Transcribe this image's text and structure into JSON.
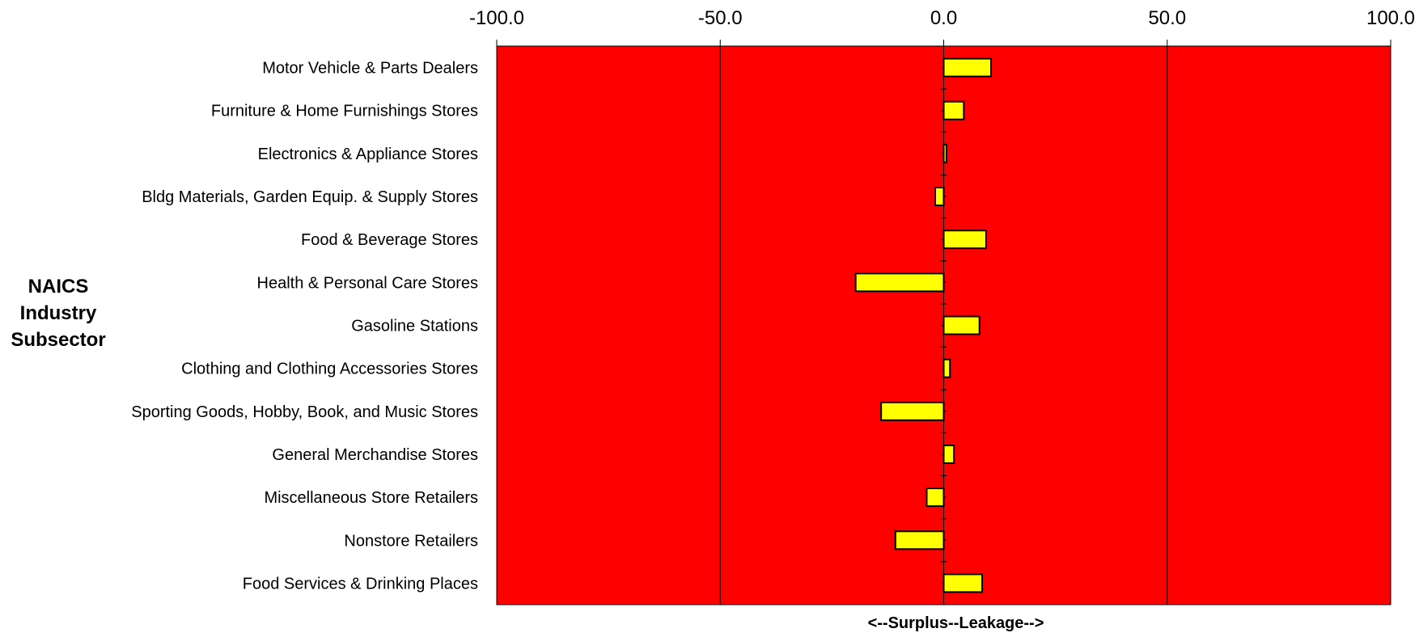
{
  "chart_data": {
    "type": "bar",
    "orientation": "horizontal",
    "categories": [
      "Motor Vehicle & Parts Dealers",
      "Furniture & Home Furnishings Stores",
      "Electronics & Appliance Stores",
      "Bldg Materials, Garden Equip. & Supply Stores",
      "Food & Beverage Stores",
      "Health & Personal Care Stores",
      "Gasoline Stations",
      "Clothing and Clothing Accessories Stores",
      "Sporting Goods, Hobby, Book, and Music Stores",
      "General Merchandise Stores",
      "Miscellaneous Store Retailers",
      "Nonstore Retailers",
      "Food Services & Drinking Places"
    ],
    "values": [
      10.6,
      4.5,
      0.6,
      -1.9,
      9.5,
      -19.7,
      8.0,
      1.4,
      -14.0,
      2.3,
      -3.8,
      -10.8,
      8.6
    ],
    "xlim": [
      -100,
      100
    ],
    "x_ticks": [
      "-100.0",
      "-50.0",
      "0.0",
      "50.0",
      "100.0"
    ],
    "x_tick_values": [
      -100,
      -50,
      0,
      50,
      100
    ],
    "xlabel": "<--Surplus--Leakage-->",
    "ylabel_lines": [
      "NAICS",
      "Industry",
      "Subsector"
    ],
    "title": "",
    "grid": true,
    "colors": {
      "plot_background": "#ff0000",
      "bar_fill": "#ffff00",
      "bar_stroke": "#000000",
      "gridline": "#000000"
    }
  }
}
